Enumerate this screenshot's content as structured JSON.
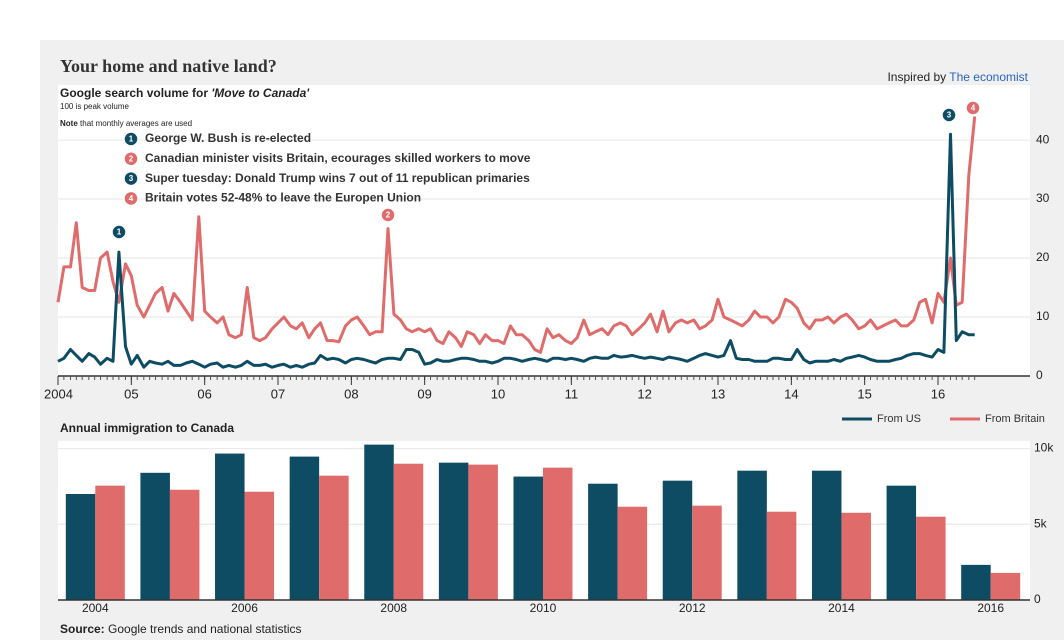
{
  "header": {
    "title": "Your home and native land?",
    "credit_prefix": "Inspired by",
    "credit_link": "The economist",
    "source_label": "Source:",
    "source_text": "Google trends and national statistics"
  },
  "chart_data": [
    {
      "type": "line",
      "subtitle": "Google search volume for",
      "subtitle_query": "'Move to Canada'",
      "note_peak": "100 is peak volume",
      "note_label": "Note",
      "note_text": "that monthly averages are used",
      "annotations": [
        {
          "number": 1,
          "text": "George W. Bush is re-elected",
          "color": "#0d4c63"
        },
        {
          "number": 2,
          "text": "Canadian minister visits Britain, ecourages skilled workers to move",
          "color": "#e06b6b"
        },
        {
          "number": 3,
          "text": "Super tuesday: Donald Trump wins 7 out of 11 republican primaries",
          "color": "#0d4c63"
        },
        {
          "number": 4,
          "text": "Britain votes 52-48% to leave the Europen Union",
          "color": "#e06b6b"
        }
      ],
      "x": [
        2004,
        2004.08,
        2004.17,
        2004.25,
        2004.33,
        2004.42,
        2004.5,
        2004.58,
        2004.67,
        2004.75,
        2004.83,
        2004.92,
        2005,
        2005.08,
        2005.17,
        2005.25,
        2005.33,
        2005.42,
        2005.5,
        2005.58,
        2005.67,
        2005.75,
        2005.83,
        2005.92,
        2006,
        2006.08,
        2006.17,
        2006.25,
        2006.33,
        2006.42,
        2006.5,
        2006.58,
        2006.67,
        2006.75,
        2006.83,
        2006.92,
        2007,
        2007.08,
        2007.17,
        2007.25,
        2007.33,
        2007.42,
        2007.5,
        2007.58,
        2007.67,
        2007.75,
        2007.83,
        2007.92,
        2008,
        2008.08,
        2008.17,
        2008.25,
        2008.33,
        2008.42,
        2008.5,
        2008.58,
        2008.67,
        2008.75,
        2008.83,
        2008.92,
        2009,
        2009.08,
        2009.17,
        2009.25,
        2009.33,
        2009.42,
        2009.5,
        2009.58,
        2009.67,
        2009.75,
        2009.83,
        2009.92,
        2010,
        2010.08,
        2010.17,
        2010.25,
        2010.33,
        2010.42,
        2010.5,
        2010.58,
        2010.67,
        2010.75,
        2010.83,
        2010.92,
        2011,
        2011.08,
        2011.17,
        2011.25,
        2011.33,
        2011.42,
        2011.5,
        2011.58,
        2011.67,
        2011.75,
        2011.83,
        2011.92,
        2012,
        2012.08,
        2012.17,
        2012.25,
        2012.33,
        2012.42,
        2012.5,
        2012.58,
        2012.67,
        2012.75,
        2012.83,
        2012.92,
        2013,
        2013.08,
        2013.17,
        2013.25,
        2013.33,
        2013.42,
        2013.5,
        2013.58,
        2013.67,
        2013.75,
        2013.83,
        2013.92,
        2014,
        2014.08,
        2014.17,
        2014.25,
        2014.33,
        2014.42,
        2014.5,
        2014.58,
        2014.67,
        2014.75,
        2014.83,
        2014.92,
        2015,
        2015.08,
        2015.17,
        2015.25,
        2015.33,
        2015.42,
        2015.5,
        2015.58,
        2015.67,
        2015.75,
        2015.83,
        2015.92,
        2016,
        2016.08,
        2016.17,
        2016.25,
        2016.33,
        2016.42,
        2016.5
      ],
      "series": [
        {
          "color": "#0d4c63",
          "values": [
            2.5,
            3,
            4.5,
            3.5,
            2.5,
            3.8,
            3.2,
            2,
            3,
            2.5,
            21,
            5,
            2,
            3.5,
            1.5,
            2.5,
            2.2,
            2,
            2.5,
            1.8,
            1.8,
            2.2,
            2.5,
            2,
            1.5,
            2,
            2.2,
            1.5,
            1.8,
            1.5,
            1.8,
            2.5,
            1.8,
            1.8,
            2,
            1.5,
            1.8,
            2,
            1.5,
            1.8,
            1.5,
            2,
            2.2,
            3.5,
            2.8,
            3,
            2.8,
            2.2,
            2.8,
            3,
            2.8,
            2.5,
            2.2,
            2.8,
            3,
            3,
            2.8,
            4.5,
            4.5,
            4,
            2,
            2.2,
            2.8,
            2.5,
            2.5,
            2.8,
            3,
            3,
            2.8,
            2.5,
            2.5,
            2.2,
            2.5,
            3,
            3,
            2.8,
            2.5,
            2.8,
            3,
            2.8,
            2.5,
            3,
            3,
            2.8,
            3,
            2.8,
            2.5,
            3,
            3.2,
            3,
            3,
            3.5,
            3.2,
            3.3,
            3.5,
            3.2,
            3,
            3.2,
            3,
            2.8,
            3.2,
            3,
            2.8,
            2.5,
            3,
            3.5,
            3.8,
            3.5,
            3.2,
            3.5,
            6,
            3,
            2.8,
            2.8,
            2.5,
            2.5,
            2.5,
            3,
            3,
            2.8,
            2.8,
            4.5,
            2.8,
            2.2,
            2.5,
            2.5,
            2.5,
            2.8,
            2.5,
            3,
            3.2,
            3.5,
            3.2,
            2.8,
            2.5,
            2.5,
            2.5,
            2.8,
            3,
            3.5,
            3.8,
            3.8,
            3.5,
            3.2,
            4.5,
            4,
            41,
            6,
            7.5,
            7,
            7
          ]
        },
        {
          "color": "#e06b6b",
          "values": [
            12.5,
            18.5,
            18.5,
            26,
            15,
            14.5,
            14.5,
            20,
            21,
            16,
            12.5,
            19,
            17,
            12,
            10,
            12,
            14,
            15,
            11,
            14,
            12.5,
            11,
            9.5,
            27,
            11,
            10,
            9,
            10,
            7,
            6.5,
            7,
            15,
            6.5,
            6,
            6.5,
            8,
            9,
            10,
            8.5,
            8,
            9,
            6.5,
            8,
            9,
            6,
            6,
            5.8,
            8.5,
            9.5,
            10,
            8.5,
            7,
            7.5,
            7.5,
            25,
            10.5,
            9.5,
            8,
            7.5,
            8,
            7.5,
            8,
            6,
            5.5,
            7.5,
            6.5,
            5,
            7.5,
            7,
            5.5,
            7,
            6,
            6,
            5.5,
            8.5,
            7,
            7,
            6,
            4.5,
            4,
            8,
            6.5,
            7,
            6,
            5.5,
            6.5,
            9.5,
            7,
            7.5,
            8,
            7,
            8.5,
            9,
            8.5,
            7,
            8,
            9,
            10.5,
            7.5,
            11,
            7.5,
            9,
            9.5,
            9,
            9.5,
            8,
            8.5,
            9.5,
            13,
            10,
            9.5,
            9,
            8.5,
            9.5,
            11,
            10,
            10,
            9,
            10,
            13,
            12.5,
            11.5,
            9,
            8,
            9.5,
            9.5,
            10,
            9,
            10,
            10.5,
            9.5,
            8,
            8.5,
            9.5,
            8,
            8.5,
            9,
            9.5,
            8.5,
            8.5,
            9.5,
            12.5,
            13,
            9,
            14,
            12.5,
            20,
            12,
            12.5,
            34,
            44
          ]
        }
      ],
      "xlim": [
        2004,
        2017.2
      ],
      "xticks": [
        {
          "value": 2004,
          "label": "2004"
        },
        {
          "value": 2005,
          "label": "05"
        },
        {
          "value": 2006,
          "label": "06"
        },
        {
          "value": 2007,
          "label": "07"
        },
        {
          "value": 2008,
          "label": "08"
        },
        {
          "value": 2009,
          "label": "09"
        },
        {
          "value": 2010,
          "label": "10"
        },
        {
          "value": 2011,
          "label": "11"
        },
        {
          "value": 2012,
          "label": "12"
        },
        {
          "value": 2013,
          "label": "13"
        },
        {
          "value": 2014,
          "label": "14"
        },
        {
          "value": 2015,
          "label": "15"
        },
        {
          "value": 2016,
          "label": "16"
        }
      ],
      "ylim": [
        0,
        49
      ],
      "yticks": [
        0,
        10,
        20,
        30,
        40
      ],
      "grid": true
    },
    {
      "type": "bar",
      "title": "Annual immigration to Canada",
      "legend": "top-right",
      "categories": [
        "2004",
        null,
        "2006",
        null,
        "2008",
        null,
        "2010",
        null,
        "2012",
        null,
        "2014",
        null,
        "2016"
      ],
      "series": [
        {
          "name": "From US",
          "color": "#0d4c63",
          "values": [
            7000,
            8400,
            9670,
            9470,
            10260,
            9070,
            8150,
            7680,
            7880,
            8540,
            8540,
            7550,
            2320
          ]
        },
        {
          "name": "From Britain",
          "color": "#e06b6b",
          "values": [
            7550,
            7280,
            7150,
            8210,
            9000,
            8940,
            8740,
            6160,
            6230,
            5830,
            5760,
            5500,
            1790
          ]
        }
      ],
      "ylim": [
        0,
        10500
      ],
      "yticks": [
        0,
        {
          "value": 5000,
          "label": "5k"
        },
        {
          "value": 10000,
          "label": "10k"
        }
      ],
      "grid": true
    }
  ]
}
